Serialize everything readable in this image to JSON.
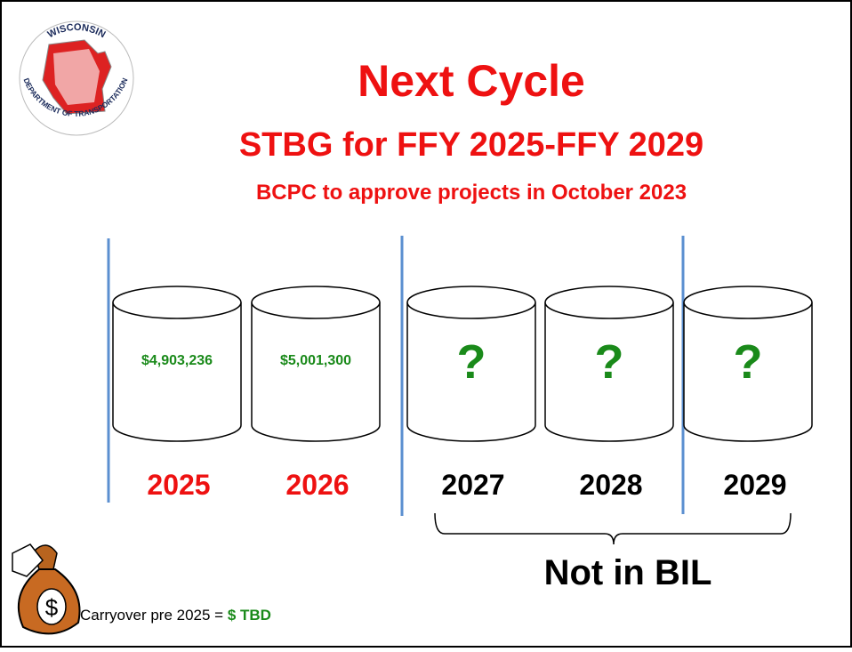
{
  "logo": {
    "top": "WISCONSIN",
    "bottom": "DEPARTMENT OF TRANSPORTATION"
  },
  "header": {
    "title": "Next Cycle",
    "subtitle": "STBG for FFY 2025-FFY 2029",
    "note": "BCPC to approve projects in October 2023"
  },
  "buckets": [
    {
      "amount": "$4,903,236",
      "year": "2025"
    },
    {
      "amount": "$5,001,300",
      "year": "2026"
    },
    {
      "amount": "?",
      "year": "2027"
    },
    {
      "amount": "?",
      "year": "2028"
    },
    {
      "amount": "?",
      "year": "2029"
    }
  ],
  "brace_label": "Not in BIL",
  "carryover": {
    "label": "Carryover pre 2025 = ",
    "amount": "$ TBD"
  }
}
